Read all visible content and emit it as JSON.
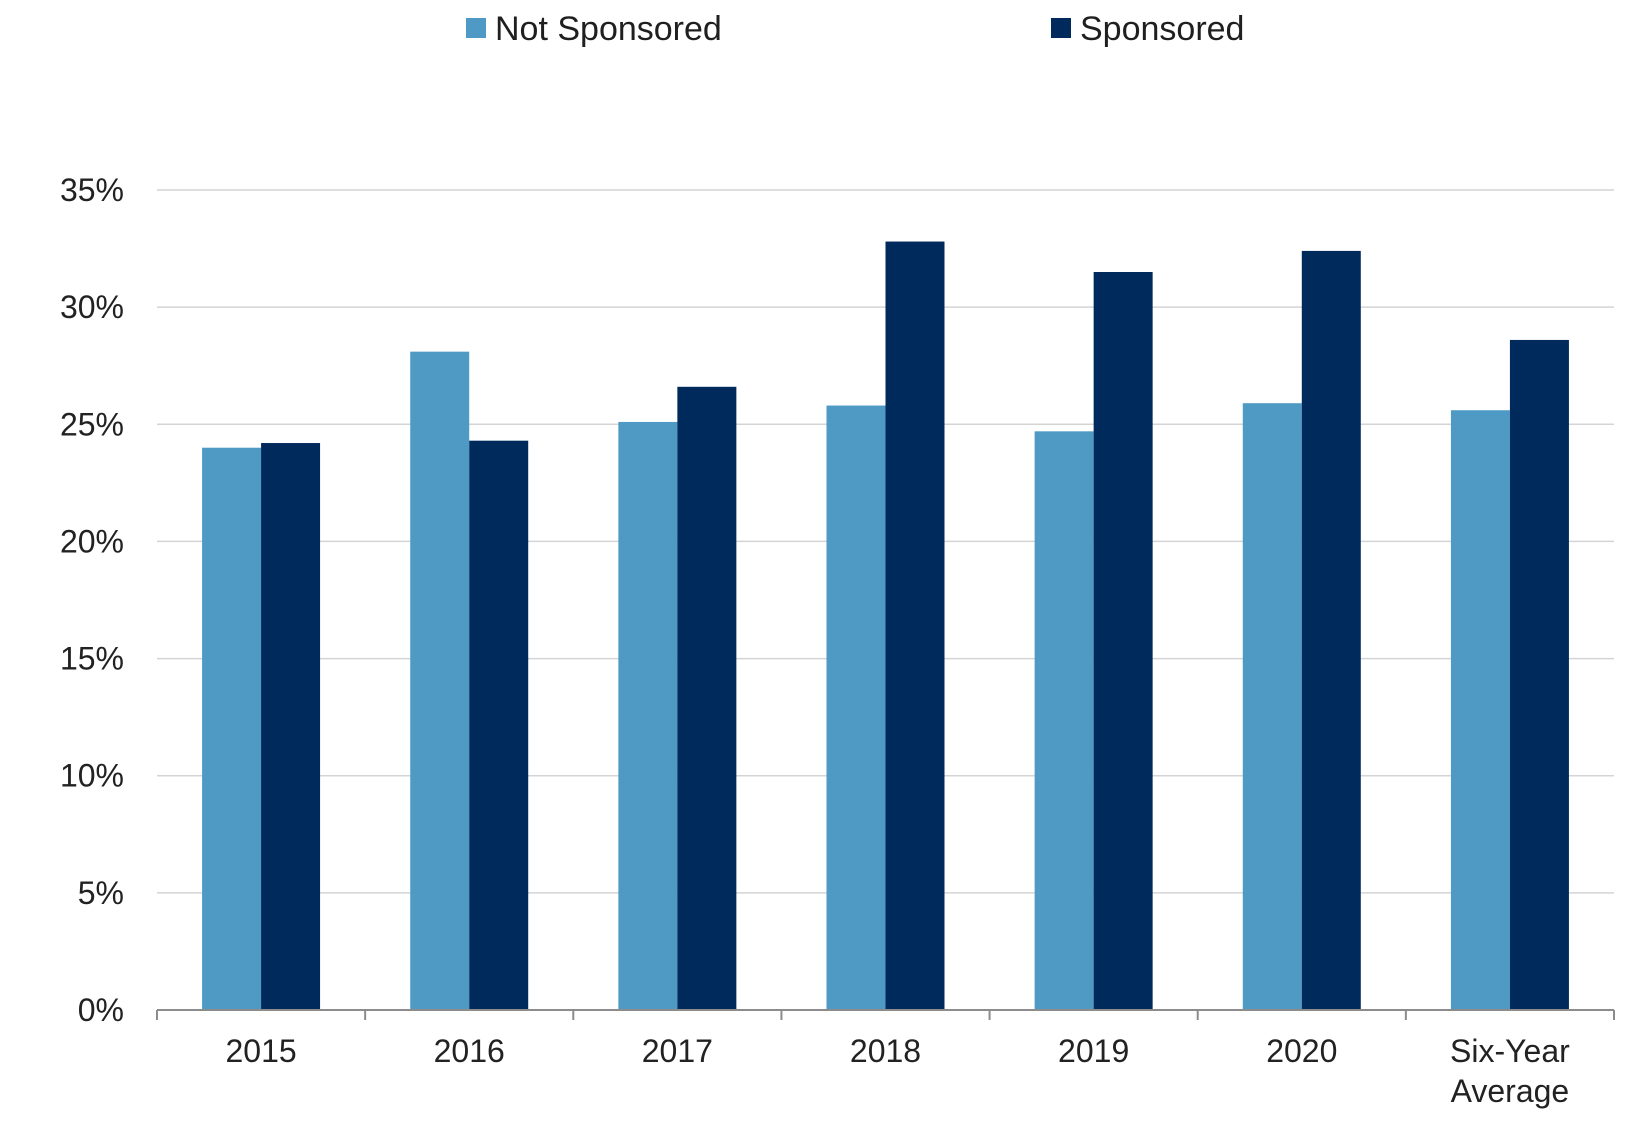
{
  "chart_data": {
    "type": "bar",
    "categories": [
      "2015",
      "2016",
      "2017",
      "2018",
      "2019",
      "2020",
      "Six-Year Average"
    ],
    "category_lines": [
      [
        "2015"
      ],
      [
        "2016"
      ],
      [
        "2017"
      ],
      [
        "2018"
      ],
      [
        "2019"
      ],
      [
        "2020"
      ],
      [
        "Six-Year",
        "Average"
      ]
    ],
    "series": [
      {
        "name": "Not Sponsored",
        "color": "#4f9ac4",
        "values": [
          24.0,
          28.1,
          25.1,
          25.8,
          24.7,
          25.9,
          25.6
        ]
      },
      {
        "name": "Sponsored",
        "color": "#002a5c",
        "values": [
          24.2,
          24.3,
          26.6,
          32.8,
          31.5,
          32.4,
          28.6
        ]
      }
    ],
    "title": "",
    "xlabel": "",
    "ylabel": "",
    "ylim": [
      0,
      35
    ],
    "yticks": [
      0,
      5,
      10,
      15,
      20,
      25,
      30,
      35
    ],
    "ytick_labels": [
      "0%",
      "5%",
      "10%",
      "15%",
      "20%",
      "25%",
      "30%",
      "35%"
    ],
    "grid": true,
    "gridline_color": "#d4d4d4",
    "axis_color": "#8c8c8c",
    "legend_position": "top-center"
  }
}
